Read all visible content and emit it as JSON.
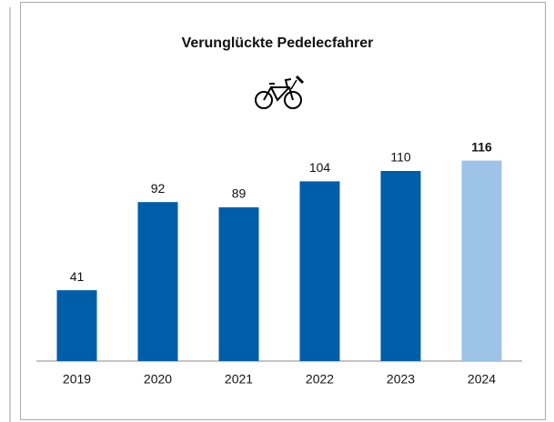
{
  "chart_data": {
    "type": "bar",
    "title": "Verunglückte Pedelecfahrer",
    "categories": [
      "2019",
      "2020",
      "2021",
      "2022",
      "2023",
      "2024"
    ],
    "values": [
      41,
      92,
      89,
      104,
      110,
      116
    ],
    "colors": [
      "#005ea8",
      "#005ea8",
      "#005ea8",
      "#005ea8",
      "#005ea8",
      "#9dc3e6"
    ],
    "highlight": 5,
    "ylim": [
      0,
      120
    ]
  }
}
